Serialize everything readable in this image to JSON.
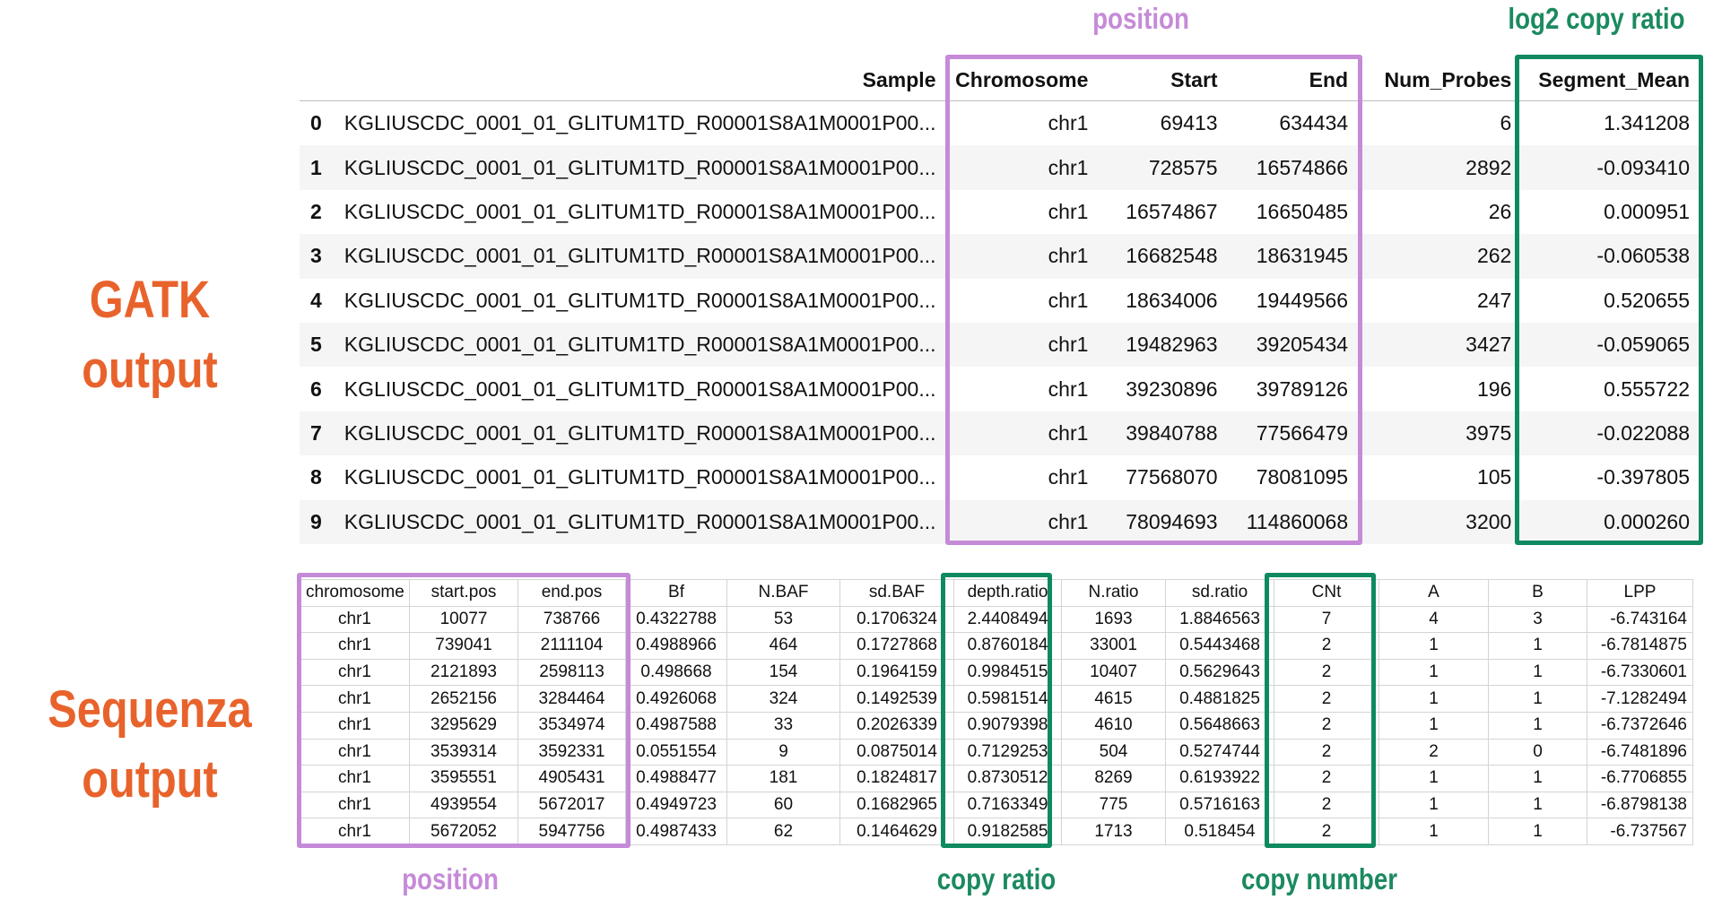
{
  "labels": {
    "gatk_output": "GATK output",
    "sequenza_output": [
      "Sequenza",
      "output"
    ]
  },
  "annotations": {
    "gatk_position": "position",
    "gatk_log2": "log2 copy ratio",
    "seq_position": "position",
    "seq_copy_ratio": "copy ratio",
    "seq_copy_number": "copy number"
  },
  "colors": {
    "orange": "#e8632c",
    "purple": "#c58ad8",
    "green": "#0f8a5f"
  },
  "gatk_table": {
    "headers": [
      "",
      "Sample",
      "Chromosome",
      "Start",
      "End",
      "Num_Probes",
      "Segment_Mean"
    ],
    "rows": [
      [
        "0",
        "KGLIUSCDC_0001_01_GLITUM1TD_R00001S8A1M0001P00...",
        "chr1",
        "69413",
        "634434",
        "6",
        "1.341208"
      ],
      [
        "1",
        "KGLIUSCDC_0001_01_GLITUM1TD_R00001S8A1M0001P00...",
        "chr1",
        "728575",
        "16574866",
        "2892",
        "-0.093410"
      ],
      [
        "2",
        "KGLIUSCDC_0001_01_GLITUM1TD_R00001S8A1M0001P00...",
        "chr1",
        "16574867",
        "16650485",
        "26",
        "0.000951"
      ],
      [
        "3",
        "KGLIUSCDC_0001_01_GLITUM1TD_R00001S8A1M0001P00...",
        "chr1",
        "16682548",
        "18631945",
        "262",
        "-0.060538"
      ],
      [
        "4",
        "KGLIUSCDC_0001_01_GLITUM1TD_R00001S8A1M0001P00...",
        "chr1",
        "18634006",
        "19449566",
        "247",
        "0.520655"
      ],
      [
        "5",
        "KGLIUSCDC_0001_01_GLITUM1TD_R00001S8A1M0001P00...",
        "chr1",
        "19482963",
        "39205434",
        "3427",
        "-0.059065"
      ],
      [
        "6",
        "KGLIUSCDC_0001_01_GLITUM1TD_R00001S8A1M0001P00...",
        "chr1",
        "39230896",
        "39789126",
        "196",
        "0.555722"
      ],
      [
        "7",
        "KGLIUSCDC_0001_01_GLITUM1TD_R00001S8A1M0001P00...",
        "chr1",
        "39840788",
        "77566479",
        "3975",
        "-0.022088"
      ],
      [
        "8",
        "KGLIUSCDC_0001_01_GLITUM1TD_R00001S8A1M0001P00...",
        "chr1",
        "77568070",
        "78081095",
        "105",
        "-0.397805"
      ],
      [
        "9",
        "KGLIUSCDC_0001_01_GLITUM1TD_R00001S8A1M0001P00...",
        "chr1",
        "78094693",
        "114860068",
        "3200",
        "0.000260"
      ]
    ]
  },
  "sequenza_table": {
    "headers": [
      "chromosome",
      "start.pos",
      "end.pos",
      "Bf",
      "N.BAF",
      "sd.BAF",
      "depth.ratio",
      "N.ratio",
      "sd.ratio",
      "CNt",
      "A",
      "B",
      "LPP"
    ],
    "rows": [
      [
        "chr1",
        "10077",
        "738766",
        "0.4322788",
        "53",
        "0.1706324",
        "2.4408494",
        "1693",
        "1.8846563",
        "7",
        "4",
        "3",
        "-6.743164"
      ],
      [
        "chr1",
        "739041",
        "2111104",
        "0.4988966",
        "464",
        "0.1727868",
        "0.8760184",
        "33001",
        "0.5443468",
        "2",
        "1",
        "1",
        "-6.7814875"
      ],
      [
        "chr1",
        "2121893",
        "2598113",
        "0.498668",
        "154",
        "0.1964159",
        "0.9984515",
        "10407",
        "0.5629643",
        "2",
        "1",
        "1",
        "-6.7330601"
      ],
      [
        "chr1",
        "2652156",
        "3284464",
        "0.4926068",
        "324",
        "0.1492539",
        "0.5981514",
        "4615",
        "0.4881825",
        "2",
        "1",
        "1",
        "-7.1282494"
      ],
      [
        "chr1",
        "3295629",
        "3534974",
        "0.4987588",
        "33",
        "0.2026339",
        "0.9079398",
        "4610",
        "0.5648663",
        "2",
        "1",
        "1",
        "-6.7372646"
      ],
      [
        "chr1",
        "3539314",
        "3592331",
        "0.0551554",
        "9",
        "0.0875014",
        "0.7129253",
        "504",
        "0.5274744",
        "2",
        "2",
        "0",
        "-6.7481896"
      ],
      [
        "chr1",
        "3595551",
        "4905431",
        "0.4988477",
        "181",
        "0.1824817",
        "0.8730512",
        "8269",
        "0.6193922",
        "2",
        "1",
        "1",
        "-6.7706855"
      ],
      [
        "chr1",
        "4939554",
        "5672017",
        "0.4949723",
        "60",
        "0.1682965",
        "0.7163349",
        "775",
        "0.5716163",
        "2",
        "1",
        "1",
        "-6.8798138"
      ],
      [
        "chr1",
        "5672052",
        "5947756",
        "0.4987433",
        "62",
        "0.1464629",
        "0.9182585",
        "1713",
        "0.518454",
        "2",
        "1",
        "1",
        "-6.737567"
      ]
    ]
  }
}
